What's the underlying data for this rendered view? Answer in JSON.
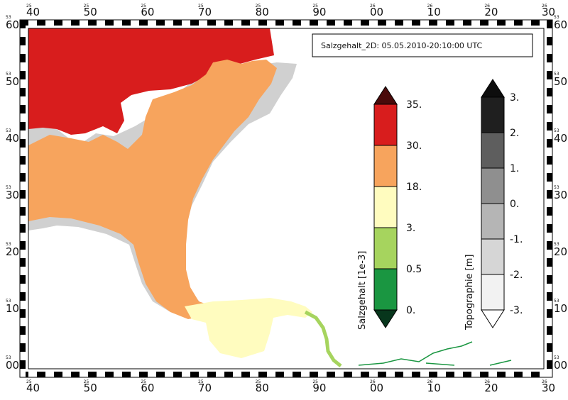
{
  "title": "Salzgehalt_2D: 05.05.2010-20:10:00 UTC",
  "frame": {
    "top_labels": [
      "40",
      "50",
      "60",
      "70",
      "80",
      "90",
      "00",
      "10",
      "20",
      "30"
    ],
    "top_small": [
      "25",
      "25",
      "25",
      "25",
      "25",
      "25",
      "26",
      "26",
      "26",
      "26"
    ],
    "side_labels": [
      "60",
      "50",
      "40",
      "30",
      "20",
      "10",
      "00"
    ],
    "side_small": [
      "53",
      "53",
      "53",
      "53",
      "53",
      "53",
      "53"
    ]
  },
  "salinity_legend": {
    "title": "Salzgehalt [1e-3]",
    "labels": [
      "35.",
      "30.",
      "18.",
      "3.",
      "0.5",
      "0."
    ],
    "colors": [
      "#4a0a0a",
      "#d81d1d",
      "#f7a45d",
      "#fffcbf",
      "#a6d45e",
      "#1a9641",
      "#07361c"
    ]
  },
  "topo_legend": {
    "title": "Topographie [m]",
    "labels": [
      "3.",
      "2.",
      "1.",
      "0.",
      "-1.",
      "-2.",
      "-3."
    ],
    "colors": [
      "#0d0d0d",
      "#1f1f1f",
      "#5e5e5e",
      "#8f8f8f",
      "#b5b5b5",
      "#d6d6d6",
      "#f2f2f2",
      "#ffffff"
    ]
  },
  "map_colors": {
    "sea": "#d81d1d",
    "estuary": "#f7a45d",
    "river": "#fffcbf",
    "upper_river": "#a6d45e",
    "fresh": "#1a9641",
    "tidal_flat": "#a9a9a9",
    "tidal_flat_light": "#d0d0d0",
    "land": "#ffffff"
  }
}
